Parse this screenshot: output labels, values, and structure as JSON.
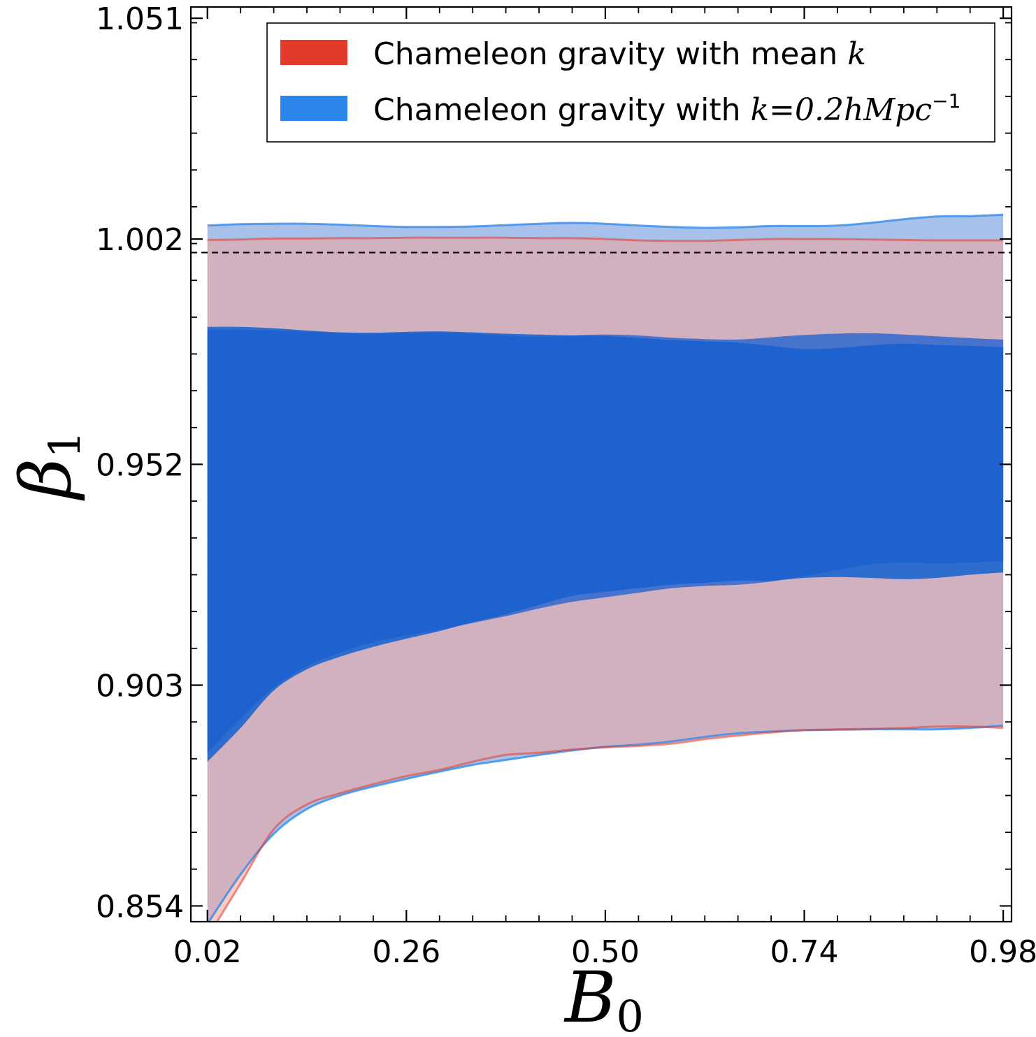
{
  "chart_data": {
    "type": "area",
    "xlabel": "B",
    "xlabel_sub": "0",
    "ylabel": "β",
    "ylabel_sub": "1",
    "xlim": [
      0.0,
      0.99
    ],
    "ylim": [
      0.8505,
      1.0535
    ],
    "x_ticks": [
      0.02,
      0.26,
      0.5,
      0.74,
      0.98
    ],
    "x_tick_labels": [
      "0.02",
      "0.26",
      "0.50",
      "0.74",
      "0.98"
    ],
    "y_ticks": [
      0.854,
      0.903,
      0.952,
      1.002,
      1.051
    ],
    "y_tick_labels": [
      "0.854",
      "0.903",
      "0.952",
      "1.002",
      "1.051"
    ],
    "reference_line": {
      "y": 0.999,
      "style": "dashed",
      "color": "#000000"
    },
    "legend": {
      "placement": "top-right",
      "entries": [
        {
          "series": 0,
          "text_plain": "Chameleon gravity with mean ",
          "text_math": "k",
          "text_sup": ""
        },
        {
          "series": 1,
          "text_plain": "Chameleon gravity with ",
          "text_math": "k=0.2hMpc",
          "text_sup": "−1"
        }
      ]
    },
    "x": [
      0.02,
      0.06,
      0.1,
      0.14,
      0.18,
      0.22,
      0.26,
      0.3,
      0.34,
      0.38,
      0.42,
      0.46,
      0.5,
      0.54,
      0.58,
      0.62,
      0.66,
      0.7,
      0.74,
      0.78,
      0.82,
      0.86,
      0.9,
      0.94,
      0.98
    ],
    "series": [
      {
        "name": "Chameleon gravity with mean k",
        "color": "#e33b2a",
        "outer_color": "#f4a39a",
        "inner_color": "#1a5fd0",
        "outer_upper": [
          1.0018,
          1.0019,
          1.0021,
          1.0021,
          1.0022,
          1.0022,
          1.0023,
          1.0023,
          1.0023,
          1.0023,
          1.0022,
          1.0022,
          1.002,
          1.0017,
          1.0016,
          1.0016,
          1.0018,
          1.002,
          1.002,
          1.002,
          1.0019,
          1.0018,
          1.0017,
          1.0017,
          1.0017
        ],
        "inner_upper": [
          0.9818,
          0.9818,
          0.9817,
          0.9814,
          0.9811,
          0.981,
          0.9811,
          0.9812,
          0.981,
          0.9806,
          0.9803,
          0.9806,
          0.9808,
          0.9806,
          0.9801,
          0.9798,
          0.9797,
          0.9802,
          0.9807,
          0.981,
          0.9811,
          0.9808,
          0.9804,
          0.98,
          0.9797
        ],
        "inner_lower": [
          0.888,
          0.8955,
          0.9025,
          0.9072,
          0.9102,
          0.9125,
          0.914,
          0.9153,
          0.9168,
          0.9183,
          0.92,
          0.9215,
          0.9225,
          0.9235,
          0.9245,
          0.925,
          0.9253,
          0.926,
          0.9272,
          0.9285,
          0.9298,
          0.9302,
          0.93,
          0.9302,
          0.9305
        ],
        "outer_lower": [
          0.847,
          0.859,
          0.871,
          0.8765,
          0.879,
          0.881,
          0.8828,
          0.8842,
          0.886,
          0.8875,
          0.888,
          0.8887,
          0.8892,
          0.8895,
          0.89,
          0.891,
          0.8918,
          0.8925,
          0.893,
          0.8932,
          0.8933,
          0.8935,
          0.8938,
          0.8938,
          0.8935
        ]
      },
      {
        "name": "Chameleon gravity with k=0.2hMpc^-1",
        "color": "#2a86ea",
        "outer_color": "#a7c1ea",
        "inner_color": "#2469cf",
        "outer_upper": [
          1.005,
          1.0053,
          1.0054,
          1.0054,
          1.0052,
          1.0049,
          1.0047,
          1.0047,
          1.0048,
          1.0051,
          1.0054,
          1.0056,
          1.0054,
          1.005,
          1.0047,
          1.0045,
          1.0046,
          1.0049,
          1.0049,
          1.005,
          1.0056,
          1.0064,
          1.007,
          1.0071,
          1.0074
        ],
        "inner_upper": [
          0.9825,
          0.9825,
          0.9822,
          0.9817,
          0.9813,
          0.9812,
          0.9814,
          0.9815,
          0.9813,
          0.981,
          0.9808,
          0.9806,
          0.9805,
          0.98,
          0.9796,
          0.9793,
          0.979,
          0.9783,
          0.9776,
          0.9778,
          0.9784,
          0.9788,
          0.9785,
          0.9783,
          0.978
        ],
        "inner_lower": [
          0.886,
          0.8935,
          0.9018,
          0.9065,
          0.9093,
          0.9115,
          0.9133,
          0.915,
          0.917,
          0.9187,
          0.9208,
          0.9228,
          0.9237,
          0.9245,
          0.9253,
          0.9257,
          0.9262,
          0.9262,
          0.9268,
          0.927,
          0.9268,
          0.9265,
          0.9268,
          0.9275,
          0.928
        ],
        "outer_lower": [
          0.85,
          0.861,
          0.87,
          0.8755,
          0.8785,
          0.8805,
          0.8822,
          0.8838,
          0.8853,
          0.8864,
          0.8875,
          0.8885,
          0.8893,
          0.8898,
          0.8905,
          0.8915,
          0.8923,
          0.8927,
          0.893,
          0.8931,
          0.8932,
          0.8932,
          0.8932,
          0.8935,
          0.894
        ]
      }
    ]
  }
}
